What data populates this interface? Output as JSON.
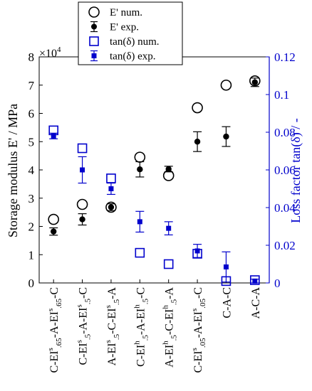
{
  "chart_data": {
    "type": "scatter",
    "categories": [
      {
        "base": "C-EI",
        "sup": "s",
        "mid": ".65",
        "rest": "-A-EI",
        "sup2": "s",
        "sub2": ".65",
        "tail": "-C"
      },
      {
        "base": "C-EI",
        "sup": "s",
        "mid": ".5",
        "rest": "-A-EI",
        "sup2": "s",
        "sub2": ".5",
        "tail": "-C"
      },
      {
        "base": "A-EI",
        "sup": "s",
        "mid": ".5",
        "rest": "-C-EI",
        "sup2": "s",
        "sub2": ".5",
        "tail": "-A"
      },
      {
        "base": "C-EI",
        "sup": "h",
        "mid": ".5",
        "rest": "-A-EI",
        "sup2": "h",
        "sub2": ".5",
        "tail": "-C"
      },
      {
        "base": "A-EI",
        "sup": "h",
        "mid": ".5",
        "rest": "-C-EI",
        "sup2": "h",
        "sub2": ".5",
        "tail": "-A"
      },
      {
        "base": "C-EI",
        "sup": "s",
        "mid": ".05",
        "rest": "-A-EI",
        "sup2": "s",
        "sub2": ".05",
        "tail": "-C"
      },
      {
        "base": "C-A-C",
        "sup": "",
        "mid": "",
        "rest": "",
        "sup2": "",
        "sub2": "",
        "tail": ""
      },
      {
        "base": "A-C-A",
        "sup": "",
        "mid": "",
        "rest": "",
        "sup2": "",
        "sub2": "",
        "tail": ""
      }
    ],
    "ylabel_left": "Storage modulus E' / MPa",
    "ylabel_right": "Loss factor tan(δ)  /  -",
    "left_multiplier": "×10",
    "left_multiplier_exp": "4",
    "ylim_left": [
      0,
      8
    ],
    "ylim_right": [
      0,
      0.12
    ],
    "yticks_left": [
      "0",
      "1",
      "2",
      "3",
      "4",
      "5",
      "6",
      "7",
      "8"
    ],
    "yticks_right": [
      "0",
      "0.02",
      "0.04",
      "0.06",
      "0.08",
      "0.1",
      "0.12"
    ],
    "series": [
      {
        "name": "E' num.",
        "axis": "left",
        "marker": "open-circle",
        "color": "#000000",
        "values": [
          2.25,
          2.78,
          2.68,
          4.45,
          3.8,
          6.2,
          7.0,
          7.15
        ]
      },
      {
        "name": "E' exp.",
        "axis": "left",
        "marker": "filled-circle-errorbar",
        "color": "#000000",
        "values": [
          1.82,
          2.25,
          2.68,
          4.02,
          4.03,
          5.0,
          5.18,
          7.1
        ],
        "err": [
          0.13,
          0.2,
          0.12,
          0.27,
          0.1,
          0.35,
          0.35,
          0.15
        ]
      },
      {
        "name": "tan(δ) num.",
        "axis": "right",
        "marker": "open-square",
        "color": "#0000cc",
        "values": [
          0.081,
          0.0715,
          0.0555,
          0.016,
          0.01,
          0.0155,
          0.001,
          0.0015
        ]
      },
      {
        "name": "tan(δ) exp.",
        "axis": "right",
        "marker": "filled-square-errorbar",
        "color": "#0000cc",
        "values": [
          0.078,
          0.06,
          0.05,
          0.0325,
          0.029,
          0.017,
          0.0085,
          0.001
        ],
        "err": [
          0.0015,
          0.007,
          0.003,
          0.0055,
          0.0035,
          0.0035,
          0.008,
          0.001
        ]
      }
    ],
    "legend": {
      "placement": "top-center",
      "entries": [
        {
          "label": "E' num."
        },
        {
          "label": "E' exp."
        },
        {
          "label": "tan(δ) num."
        },
        {
          "label": "tan(δ) exp."
        }
      ]
    },
    "colors": {
      "left_axis": "#000000",
      "right_axis": "#0000cc"
    }
  }
}
